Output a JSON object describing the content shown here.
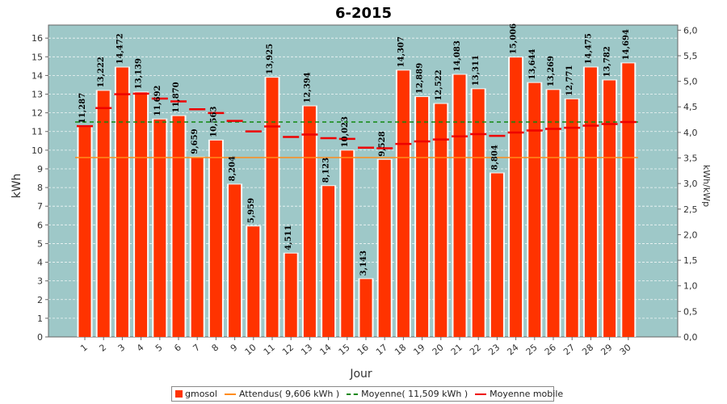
{
  "chart_data": {
    "type": "bar",
    "title": "6-2015",
    "xlabel": "Jour",
    "ylabel": "kWh",
    "y2label": "kWh/kWp",
    "ylim": [
      0,
      16.7
    ],
    "y2lim": [
      0,
      6.1
    ],
    "yticks": [
      "0",
      "1",
      "2",
      "3",
      "4",
      "5",
      "6",
      "7",
      "8",
      "9",
      "10",
      "11",
      "12",
      "13",
      "14",
      "15",
      "16"
    ],
    "y2ticks": [
      "0,0",
      "0,5",
      "1,0",
      "1,5",
      "2,0",
      "2,5",
      "3,0",
      "3,5",
      "4,0",
      "4,5",
      "5,0",
      "5,5",
      "6,0"
    ],
    "grid": true,
    "legend_position": "bottom",
    "categories": [
      "1",
      "2",
      "3",
      "4",
      "5",
      "6",
      "7",
      "8",
      "9",
      "10",
      "11",
      "12",
      "13",
      "14",
      "15",
      "16",
      "17",
      "18",
      "19",
      "20",
      "21",
      "22",
      "23",
      "24",
      "25",
      "26",
      "27",
      "28",
      "29",
      "30"
    ],
    "series": [
      {
        "name": "gmosol",
        "kind": "bar",
        "color": "#ff3300",
        "values": [
          11.287,
          13.222,
          14.472,
          13.139,
          11.692,
          11.87,
          9.659,
          10.563,
          8.204,
          5.959,
          13.925,
          4.511,
          12.394,
          8.123,
          10.023,
          3.143,
          9.528,
          14.307,
          12.889,
          12.522,
          14.083,
          13.311,
          8.804,
          15.006,
          13.644,
          13.269,
          12.771,
          14.475,
          13.782,
          14.694
        ],
        "labels": [
          "11,287",
          "13,222",
          "14,472",
          "13,139",
          "11,692",
          "11,870",
          "9,659",
          "10,563",
          "8,204",
          "5,959",
          "13,925",
          "4,511",
          "12,394",
          "8,123",
          "10,023",
          "3,143",
          "9,528",
          "14,307",
          "12,889",
          "12,522",
          "14,083",
          "13,311",
          "8,804",
          "15,006",
          "13,644",
          "13,269",
          "12,771",
          "14,475",
          "13,782",
          "14,694"
        ]
      },
      {
        "name": "Attendus( 9,606 kWh )",
        "kind": "line",
        "color": "#ff8c1a",
        "value": 9.606
      },
      {
        "name": "Moyenne( 11,509 kWh )",
        "kind": "dashed-line",
        "color": "#118811",
        "value": 11.509
      },
      {
        "name": "Moyenne mobile",
        "kind": "markers",
        "color": "#ee0000",
        "values": [
          11.287,
          12.255,
          12.994,
          13.03,
          12.763,
          12.614,
          12.191,
          11.988,
          11.568,
          11.007,
          11.273,
          10.71,
          10.839,
          10.645,
          10.603,
          10.137,
          10.101,
          10.334,
          10.47,
          10.573,
          10.74,
          10.857,
          10.768,
          10.944,
          11.052,
          11.138,
          11.198,
          11.315,
          11.401,
          11.51
        ]
      }
    ]
  }
}
